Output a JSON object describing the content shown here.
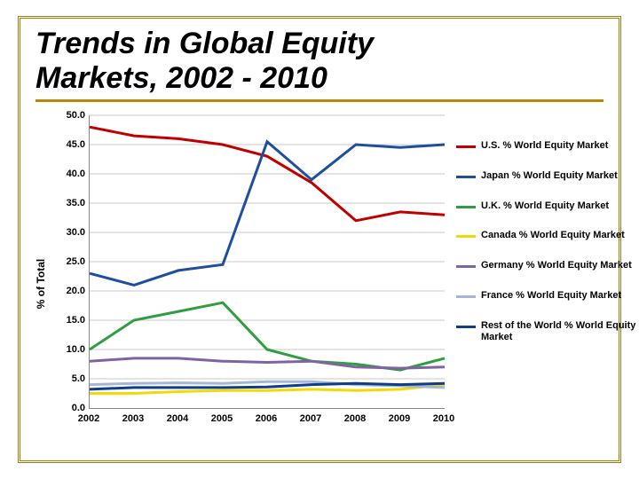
{
  "title_line1": "Trends in Global Equity",
  "title_line2": "Markets, 2002 - 2010",
  "ylabel": "% of Total",
  "chart": {
    "type": "line",
    "background_color": "#ffffff",
    "grid_color": "#c8c8c8",
    "axis_color": "#888888",
    "ylim": [
      0,
      50
    ],
    "ytick_step": 5,
    "yticks": [
      "0.0",
      "5.0",
      "10.0",
      "15.0",
      "20.0",
      "25.0",
      "30.0",
      "35.0",
      "40.0",
      "45.0",
      "50.0"
    ],
    "categories": [
      "2002",
      "2003",
      "2004",
      "2005",
      "2006",
      "2007",
      "2008",
      "2009",
      "2010"
    ],
    "line_width": 3,
    "tick_fontsize": 11,
    "tick_fontweight": "bold",
    "series": [
      {
        "name": "U.S. % World Equity Market",
        "color": "#c00000",
        "values": [
          48.0,
          46.5,
          46.0,
          45.0,
          43.0,
          38.5,
          32.0,
          33.5,
          33.0
        ]
      },
      {
        "name": "Japan % World Equity Market",
        "color": "#1f4e9c",
        "values": [
          23.0,
          21.0,
          23.5,
          24.5,
          45.5,
          39.0,
          45.0,
          44.5,
          45.0
        ]
      },
      {
        "name": "U.K. % World Equity Market",
        "color": "#2e9e3f",
        "values": [
          10.0,
          15.0,
          16.5,
          18.0,
          10.0,
          8.0,
          7.5,
          6.5,
          8.5
        ]
      },
      {
        "name": "Canada % World Equity Market",
        "color": "#f2d908",
        "values": [
          2.5,
          2.5,
          2.8,
          3.0,
          3.0,
          3.2,
          3.0,
          3.2,
          4.0
        ]
      },
      {
        "name": "Germany % World Equity Market",
        "color": "#8064a2",
        "values": [
          8.0,
          8.5,
          8.5,
          8.0,
          7.8,
          8.0,
          7.0,
          6.8,
          7.0
        ]
      },
      {
        "name": "France % World Equity Market",
        "color": "#a5b7d6",
        "values": [
          4.0,
          4.2,
          4.3,
          4.2,
          4.5,
          4.5,
          4.0,
          3.8,
          3.5
        ]
      },
      {
        "name": "Rest of the World % World Equity Market",
        "color": "#0f3d8a",
        "values": [
          3.2,
          3.5,
          3.5,
          3.5,
          3.6,
          4.0,
          4.2,
          4.0,
          4.2
        ]
      }
    ]
  },
  "frame_color": "#9a7d0a",
  "title_fontsize": 34,
  "legend_fontsize": 11
}
